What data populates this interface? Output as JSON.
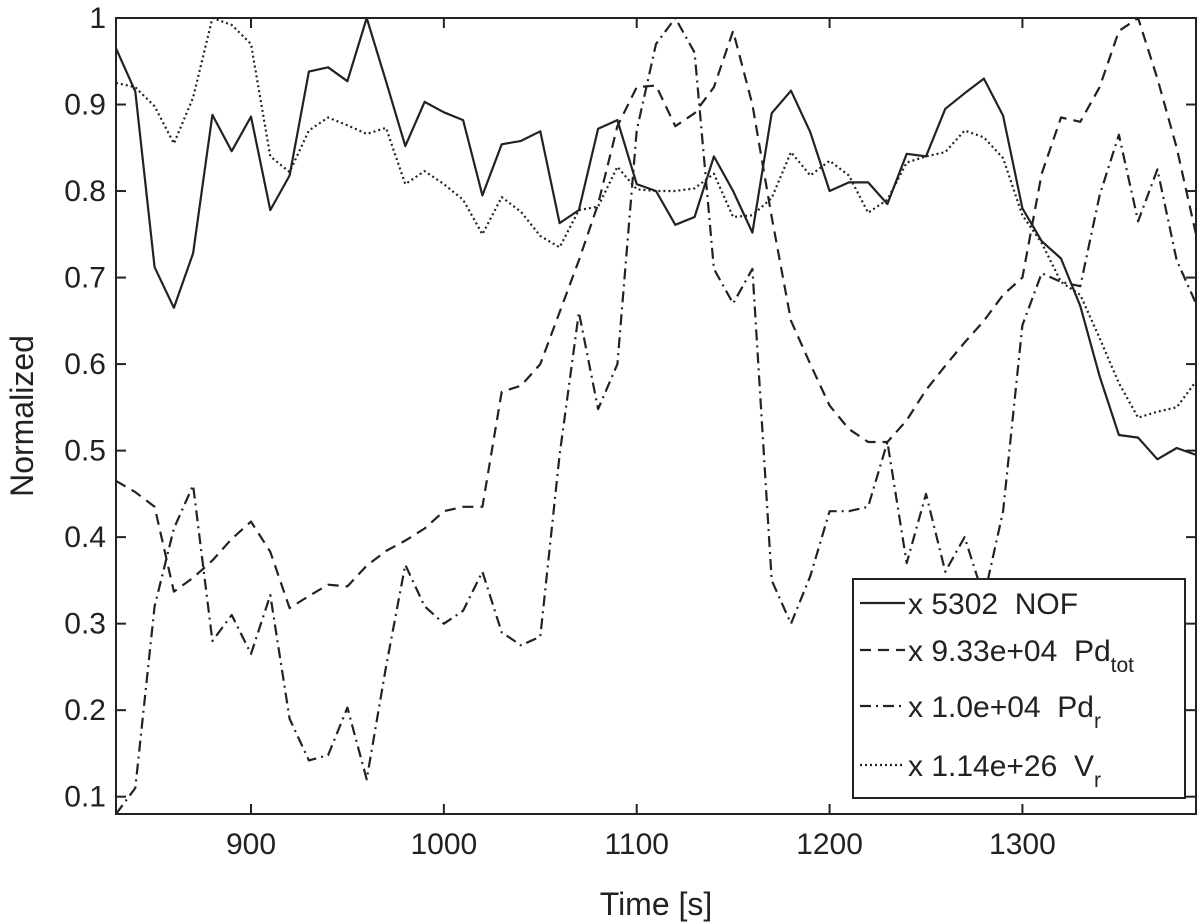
{
  "chart_data": {
    "type": "line",
    "xlabel": "Time [s]",
    "ylabel": "Normalized",
    "xlim": [
      830,
      1390
    ],
    "ylim": [
      0.08,
      1.0
    ],
    "xticks": [
      900,
      1000,
      1100,
      1200,
      1300
    ],
    "yticks": [
      0.1,
      0.2,
      0.3,
      0.4,
      0.5,
      0.6,
      0.7,
      0.8,
      0.9,
      1
    ],
    "grid": false,
    "legend_position": "bottom-right",
    "x": [
      830,
      840,
      850,
      860,
      870,
      880,
      890,
      900,
      910,
      920,
      930,
      940,
      950,
      960,
      970,
      980,
      990,
      1000,
      1010,
      1020,
      1030,
      1040,
      1050,
      1060,
      1070,
      1080,
      1090,
      1100,
      1110,
      1120,
      1130,
      1140,
      1150,
      1160,
      1170,
      1180,
      1190,
      1200,
      1210,
      1220,
      1230,
      1240,
      1250,
      1260,
      1270,
      1280,
      1290,
      1300,
      1310,
      1320,
      1330,
      1340,
      1350,
      1360,
      1370,
      1380,
      1390
    ],
    "series": [
      {
        "name": "NOF",
        "factor": "x 5302",
        "style": "solid",
        "values": [
          0.965,
          0.915,
          0.712,
          0.665,
          0.728,
          0.888,
          0.846,
          0.886,
          0.778,
          0.818,
          0.938,
          0.943,
          0.927,
          1.0,
          0.927,
          0.852,
          0.903,
          0.891,
          0.882,
          0.795,
          0.854,
          0.858,
          0.869,
          0.763,
          0.778,
          0.872,
          0.882,
          0.808,
          0.8,
          0.761,
          0.77,
          0.84,
          0.8,
          0.752,
          0.89,
          0.916,
          0.868,
          0.8,
          0.81,
          0.81,
          0.785,
          0.843,
          0.84,
          0.895,
          0.913,
          0.93,
          0.887,
          0.78,
          0.742,
          0.722,
          0.667,
          0.586,
          0.518,
          0.515,
          0.49,
          0.503,
          0.495
        ]
      },
      {
        "name": "Pd_tot",
        "label_main": "Pd",
        "label_sub": "tot",
        "factor": "x 9.33e+04",
        "style": "dashed",
        "values": [
          0.465,
          0.452,
          0.435,
          0.337,
          0.353,
          0.373,
          0.398,
          0.418,
          0.383,
          0.318,
          0.332,
          0.345,
          0.343,
          0.367,
          0.384,
          0.396,
          0.41,
          0.43,
          0.435,
          0.435,
          0.568,
          0.575,
          0.6,
          0.66,
          0.72,
          0.785,
          0.875,
          0.92,
          0.922,
          0.875,
          0.89,
          0.92,
          0.985,
          0.9,
          0.77,
          0.65,
          0.6,
          0.552,
          0.525,
          0.51,
          0.51,
          0.535,
          0.57,
          0.598,
          0.625,
          0.65,
          0.68,
          0.7,
          0.82,
          0.885,
          0.88,
          0.92,
          0.985,
          1.0,
          0.93,
          0.85,
          0.75
        ]
      },
      {
        "name": "Pd_r",
        "label_main": "Pd",
        "label_sub": "r",
        "factor": "x 1.0e+04",
        "style": "dashdot",
        "values": [
          0.08,
          0.11,
          0.32,
          0.41,
          0.46,
          0.28,
          0.31,
          0.265,
          0.333,
          0.19,
          0.142,
          0.148,
          0.203,
          0.12,
          0.25,
          0.368,
          0.32,
          0.3,
          0.315,
          0.36,
          0.29,
          0.275,
          0.285,
          0.495,
          0.66,
          0.548,
          0.6,
          0.87,
          0.97,
          1.0,
          0.96,
          0.71,
          0.67,
          0.71,
          0.35,
          0.3,
          0.355,
          0.43,
          0.43,
          0.435,
          0.51,
          0.37,
          0.45,
          0.36,
          0.4,
          0.33,
          0.43,
          0.645,
          0.705,
          0.695,
          0.69,
          0.795,
          0.865,
          0.765,
          0.825,
          0.72,
          0.67
        ]
      },
      {
        "name": "V_r",
        "label_main": "V",
        "label_sub": "r",
        "factor": "x 1.14e+26",
        "style": "dotted",
        "values": [
          0.925,
          0.92,
          0.898,
          0.855,
          0.908,
          1.0,
          0.992,
          0.97,
          0.84,
          0.822,
          0.87,
          0.885,
          0.876,
          0.866,
          0.873,
          0.808,
          0.823,
          0.808,
          0.79,
          0.75,
          0.793,
          0.776,
          0.748,
          0.735,
          0.778,
          0.782,
          0.828,
          0.802,
          0.8,
          0.8,
          0.803,
          0.82,
          0.77,
          0.772,
          0.792,
          0.845,
          0.818,
          0.835,
          0.818,
          0.775,
          0.79,
          0.833,
          0.84,
          0.845,
          0.87,
          0.862,
          0.838,
          0.772,
          0.74,
          0.695,
          0.68,
          0.63,
          0.578,
          0.538,
          0.545,
          0.55,
          0.58
        ]
      }
    ]
  }
}
